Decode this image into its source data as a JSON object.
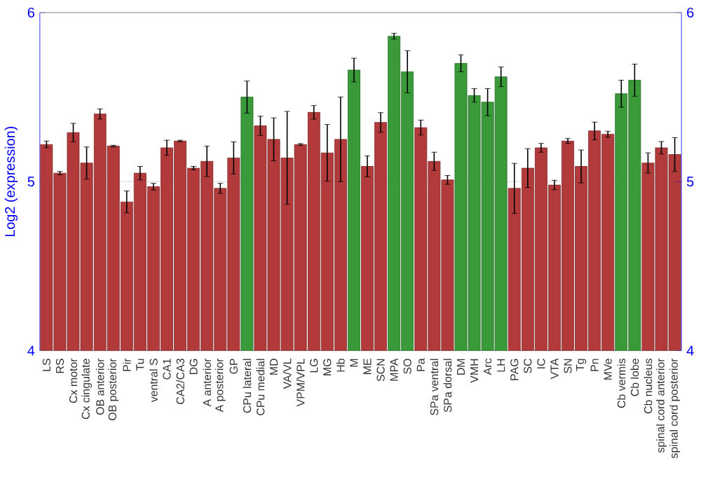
{
  "chart_data": {
    "type": "bar",
    "ylabel": "Log2 (expression)",
    "categories": [
      "LS",
      "RS",
      "Cx motor",
      "Cx cingulate",
      "OB anterior",
      "OB posterior",
      "Pir",
      "Tu",
      "ventral S",
      "CA1",
      "CA2/CA3",
      "DG",
      "A anterior",
      "A posterior",
      "GP",
      "CPu lateral",
      "CPu medial",
      "MD",
      "VA/VL",
      "VPM/VPL",
      "LG",
      "MG",
      "Hb",
      "M",
      "ME",
      "SCN",
      "MPA",
      "SO",
      "Pa",
      "SPa ventral",
      "SPa dorsal",
      "DM",
      "VMH",
      "Arc",
      "LH",
      "PAG",
      "SC",
      "IC",
      "VTA",
      "SN",
      "Tg",
      "Pn",
      "MVe",
      "Cb vermis",
      "Cb lobe",
      "Cb nucleus",
      "spinal cord anterior",
      "spinal cord posterior"
    ],
    "values": [
      5.22,
      5.05,
      5.29,
      5.11,
      5.4,
      5.21,
      4.88,
      5.05,
      4.97,
      5.2,
      5.24,
      5.08,
      5.12,
      4.96,
      5.14,
      5.5,
      5.33,
      5.25,
      5.14,
      5.22,
      5.41,
      5.17,
      5.25,
      5.66,
      5.09,
      5.35,
      5.86,
      5.65,
      5.32,
      5.12,
      5.01,
      5.7,
      5.51,
      5.47,
      5.62,
      4.96,
      5.08,
      5.2,
      4.98,
      5.24,
      5.09,
      5.3,
      5.28,
      5.52,
      5.6,
      5.11,
      5.2,
      5.16
    ],
    "errors": [
      0.02,
      0.01,
      0.055,
      0.095,
      0.03,
      0.005,
      0.065,
      0.04,
      0.02,
      0.045,
      0.005,
      0.01,
      0.09,
      0.03,
      0.095,
      0.095,
      0.057,
      0.127,
      0.275,
      0.005,
      0.04,
      0.168,
      0.25,
      0.07,
      0.062,
      0.058,
      0.017,
      0.125,
      0.044,
      0.054,
      0.026,
      0.05,
      0.04,
      0.08,
      0.058,
      0.148,
      0.115,
      0.026,
      0.028,
      0.015,
      0.097,
      0.052,
      0.018,
      0.08,
      0.095,
      0.06,
      0.037,
      0.1
    ],
    "colors": [
      "#b23a3a",
      "#b23a3a",
      "#b23a3a",
      "#b23a3a",
      "#b23a3a",
      "#b23a3a",
      "#b23a3a",
      "#b23a3a",
      "#b23a3a",
      "#b23a3a",
      "#b23a3a",
      "#b23a3a",
      "#b23a3a",
      "#b23a3a",
      "#b23a3a",
      "#3a9a3a",
      "#b23a3a",
      "#b23a3a",
      "#b23a3a",
      "#b23a3a",
      "#b23a3a",
      "#b23a3a",
      "#b23a3a",
      "#3a9a3a",
      "#b23a3a",
      "#b23a3a",
      "#3a9a3a",
      "#3a9a3a",
      "#b23a3a",
      "#b23a3a",
      "#b23a3a",
      "#3a9a3a",
      "#3a9a3a",
      "#3a9a3a",
      "#3a9a3a",
      "#b23a3a",
      "#b23a3a",
      "#b23a3a",
      "#b23a3a",
      "#b23a3a",
      "#b23a3a",
      "#b23a3a",
      "#b23a3a",
      "#3a9a3a",
      "#3a9a3a",
      "#b23a3a",
      "#b23a3a",
      "#b23a3a"
    ],
    "ylim": [
      4,
      6
    ],
    "yticks": [
      4,
      5,
      6
    ],
    "y2lim": [
      4,
      6
    ],
    "y2ticks": [
      4,
      5,
      6
    ],
    "grid": "y"
  }
}
